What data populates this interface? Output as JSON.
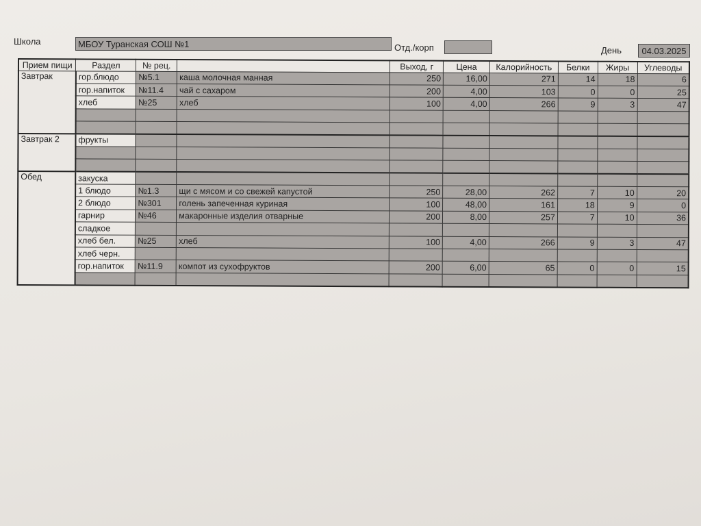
{
  "header": {
    "school_label": "Школа",
    "school_value": "МБОУ Туранская СОШ №1",
    "dept_label": "Отд./корп",
    "dept_value": "",
    "day_label": "День",
    "day_value": "04.03.2025"
  },
  "columns": [
    "Прием пищи",
    "Раздел",
    "№ рец.",
    "",
    "Выход, г",
    "Цена",
    "Калорийность",
    "Белки",
    "Жиры",
    "Углеводы"
  ],
  "meals": [
    {
      "name": "Завтрак",
      "rows": [
        [
          "гор.блюдо",
          "№5.1",
          "каша молочная манная",
          "250",
          "16,00",
          "271",
          "14",
          "18",
          "6"
        ],
        [
          "гор.напиток",
          "№11.4",
          "чай с сахаром",
          "200",
          "4,00",
          "103",
          "0",
          "0",
          "25"
        ],
        [
          "хлеб",
          "№25",
          "хлеб",
          "100",
          "4,00",
          "266",
          "9",
          "3",
          "47"
        ],
        [
          "",
          "",
          "",
          "",
          "",
          "",
          "",
          "",
          ""
        ],
        [
          "",
          "",
          "",
          "",
          "",
          "",
          "",
          "",
          ""
        ]
      ]
    },
    {
      "name": "Завтрак 2",
      "rows": [
        [
          "фрукты",
          "",
          "",
          "",
          "",
          "",
          "",
          "",
          ""
        ],
        [
          "",
          "",
          "",
          "",
          "",
          "",
          "",
          "",
          ""
        ],
        [
          "",
          "",
          "",
          "",
          "",
          "",
          "",
          "",
          ""
        ]
      ]
    },
    {
      "name": "Обед",
      "rows": [
        [
          "закуска",
          "",
          "",
          "",
          "",
          "",
          "",
          "",
          ""
        ],
        [
          "1 блюдо",
          "№1.3",
          "щи с мясом и со свежей капустой",
          "250",
          "28,00",
          "262",
          "7",
          "10",
          "20"
        ],
        [
          "2 блюдо",
          "№301",
          "голень запеченная куриная",
          "100",
          "48,00",
          "161",
          "18",
          "9",
          "0"
        ],
        [
          "гарнир",
          "№46",
          "макаронные изделия отварные",
          "200",
          "8,00",
          "257",
          "7",
          "10",
          "36"
        ],
        [
          "сладкое",
          "",
          "",
          "",
          "",
          "",
          "",
          "",
          ""
        ],
        [
          "хлеб бел.",
          "№25",
          "хлеб",
          "100",
          "4,00",
          "266",
          "9",
          "3",
          "47"
        ],
        [
          "хлеб черн.",
          "",
          "",
          "",
          "",
          "",
          "",
          "",
          ""
        ],
        [
          "гор.напиток",
          "№11.9",
          "компот из сухофруктов",
          "200",
          "6,00",
          "65",
          "0",
          "0",
          "15"
        ],
        [
          "",
          "",
          "",
          "",
          "",
          "",
          "",
          "",
          ""
        ]
      ]
    }
  ]
}
